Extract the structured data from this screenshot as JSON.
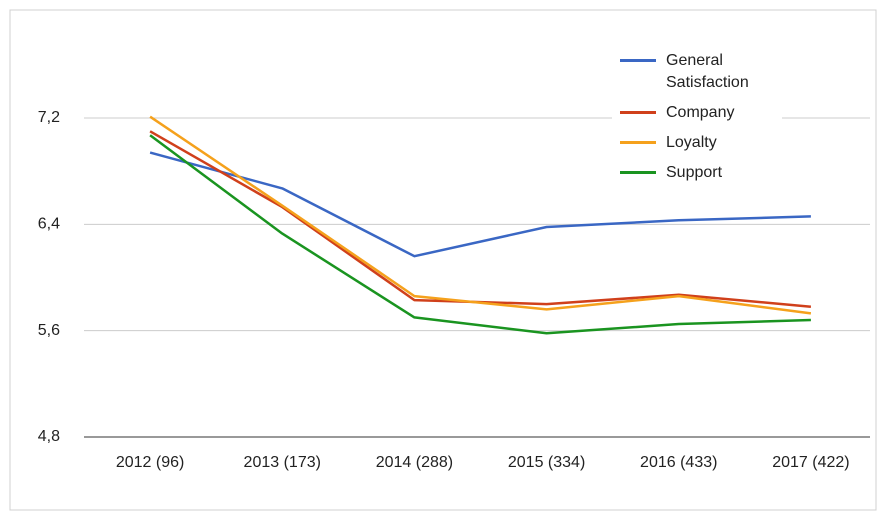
{
  "chart_data": {
    "type": "line",
    "categories": [
      "2012 (96)",
      "2013 (173)",
      "2014 (288)",
      "2015 (334)",
      "2016 (433)",
      "2017 (422)"
    ],
    "series": [
      {
        "name": "General Satisfaction",
        "color": "#3a67c4",
        "values": [
          6.94,
          6.67,
          6.16,
          6.38,
          6.43,
          6.46
        ]
      },
      {
        "name": "Company",
        "color": "#d0401b",
        "values": [
          7.1,
          6.53,
          5.83,
          5.8,
          5.87,
          5.78
        ]
      },
      {
        "name": "Loyalty",
        "color": "#f5a11c",
        "values": [
          7.21,
          6.54,
          5.86,
          5.76,
          5.86,
          5.73
        ]
      },
      {
        "name": "Support",
        "color": "#1a9420",
        "values": [
          7.07,
          6.33,
          5.7,
          5.58,
          5.65,
          5.68
        ]
      }
    ],
    "ylim": [
      4.8,
      7.2
    ],
    "yticks": [
      {
        "value": 4.8,
        "label": "4,8"
      },
      {
        "value": 5.6,
        "label": "5,6"
      },
      {
        "value": 6.4,
        "label": "6,4"
      },
      {
        "value": 7.2,
        "label": "7,2"
      }
    ],
    "grid": true,
    "legend": "top-right"
  }
}
